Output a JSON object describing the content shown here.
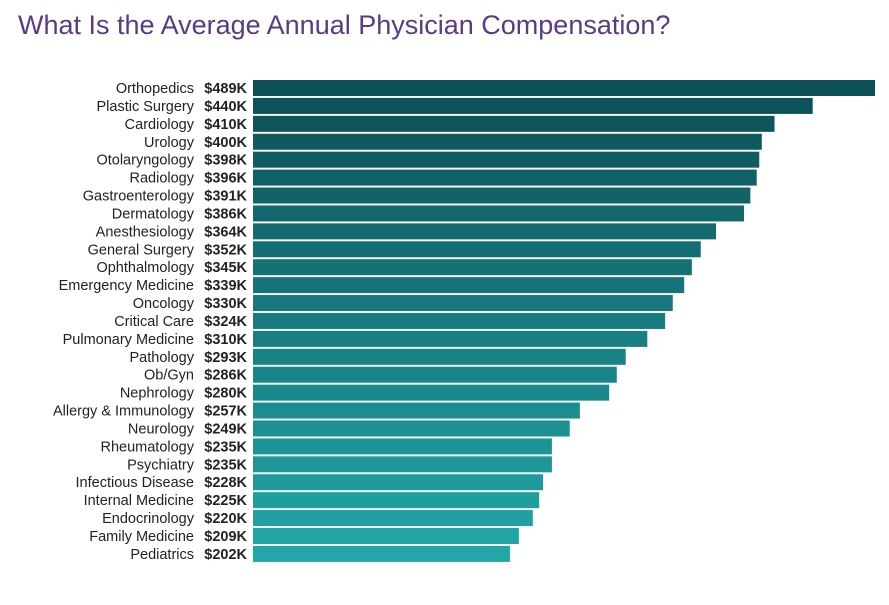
{
  "title": "What Is the Average Annual Physician Compensation?",
  "colors": {
    "title": "#5b3a82",
    "bar_top": "#0c4f55",
    "bar_bottom": "#22a7a9"
  },
  "chart_data": {
    "type": "bar",
    "orientation": "horizontal",
    "title": "What Is the Average Annual Physician Compensation?",
    "xlabel": "",
    "ylabel": "",
    "unit": "thousand USD",
    "grid": false,
    "legend": "none",
    "categories": [
      "Orthopedics",
      "Plastic Surgery",
      "Cardiology",
      "Urology",
      "Otolaryngology",
      "Radiology",
      "Gastroenterology",
      "Dermatology",
      "Anesthesiology",
      "General Surgery",
      "Ophthalmology",
      "Emergency Medicine",
      "Oncology",
      "Critical Care",
      "Pulmonary Medicine",
      "Pathology",
      "Ob/Gyn",
      "Nephrology",
      "Allergy & Immunology",
      "Neurology",
      "Rheumatology",
      "Psychiatry",
      "Infectious Disease",
      "Internal Medicine",
      "Endocrinology",
      "Family Medicine",
      "Pediatrics"
    ],
    "values": [
      489,
      440,
      410,
      400,
      398,
      396,
      391,
      386,
      364,
      352,
      345,
      339,
      330,
      324,
      310,
      293,
      286,
      280,
      257,
      249,
      235,
      235,
      228,
      225,
      220,
      209,
      202
    ],
    "value_labels": [
      "$489K",
      "$440K",
      "$410K",
      "$400K",
      "$398K",
      "$396K",
      "$391K",
      "$386K",
      "$364K",
      "$352K",
      "$345K",
      "$339K",
      "$330K",
      "$324K",
      "$310K",
      "$293K",
      "$286K",
      "$280K",
      "$257K",
      "$249K",
      "$235K",
      "$235K",
      "$228K",
      "$225K",
      "$220K",
      "$209K",
      "$202K"
    ]
  }
}
